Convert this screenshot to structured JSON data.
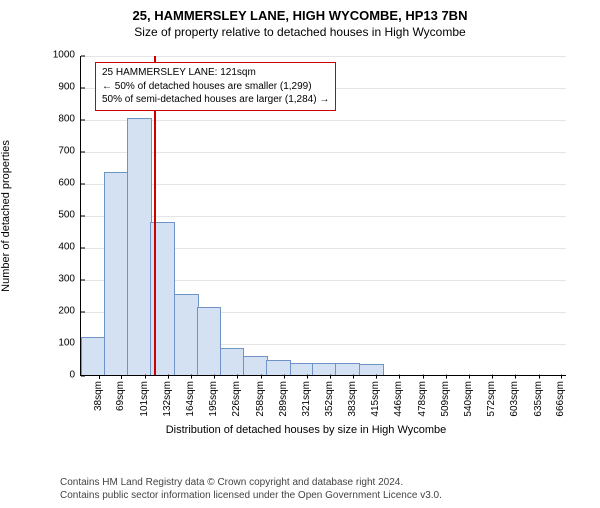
{
  "title_main": "25, HAMMERSLEY LANE, HIGH WYCOMBE, HP13 7BN",
  "title_sub": "Size of property relative to detached houses in High Wycombe",
  "chart": {
    "type": "histogram",
    "ylabel": "Number of detached properties",
    "xlabel": "Distribution of detached houses by size in High Wycombe",
    "ylim": [
      0,
      1000
    ],
    "ytick_step": 100,
    "bar_fill": "#d3e1f3",
    "bar_stroke": "#6f93c6",
    "grid_color": "#e5e5e5",
    "background_color": "#ffffff",
    "xticks": [
      "38sqm",
      "69sqm",
      "101sqm",
      "132sqm",
      "164sqm",
      "195sqm",
      "226sqm",
      "258sqm",
      "289sqm",
      "321sqm",
      "352sqm",
      "383sqm",
      "415sqm",
      "446sqm",
      "478sqm",
      "509sqm",
      "540sqm",
      "572sqm",
      "603sqm",
      "635sqm",
      "666sqm"
    ],
    "bin_width_sqm": 31.4,
    "values": [
      115,
      630,
      800,
      475,
      250,
      210,
      80,
      55,
      45,
      35,
      35,
      35,
      30,
      0,
      0,
      0,
      0,
      0,
      0,
      0,
      0
    ],
    "marker": {
      "position_sqm": 121,
      "color": "#cc0000"
    },
    "plot_x_min": 22.3,
    "plot_x_max": 681.7
  },
  "annotation": {
    "border_color": "#cc0000",
    "lines": [
      "25 HAMMERSLEY LANE: 121sqm",
      "← 50% of detached houses are smaller (1,299)",
      "50% of semi-detached houses are larger (1,284) →"
    ]
  },
  "credits": {
    "line1": "Contains HM Land Registry data © Crown copyright and database right 2024.",
    "line2": "Contains public sector information licensed under the Open Government Licence v3.0."
  }
}
